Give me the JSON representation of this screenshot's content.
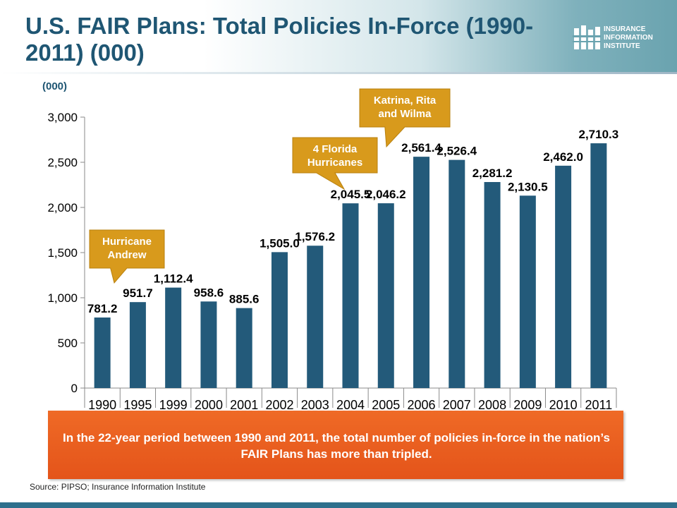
{
  "header": {
    "title": "U.S. FAIR Plans: Total Policies In-Force (1990-2011) (000)"
  },
  "logo": {
    "lines": [
      "INSURANCE",
      "INFORMATION",
      "INSTITUTE"
    ]
  },
  "chart_data": {
    "type": "bar",
    "unit_label": "(000)",
    "categories": [
      "1990",
      "1995",
      "1999",
      "2000",
      "2001",
      "2002",
      "2003",
      "2004",
      "2005",
      "2006",
      "2007",
      "2008",
      "2009",
      "2010",
      "2011"
    ],
    "values": [
      781.2,
      951.7,
      1112.4,
      958.6,
      885.6,
      1505.0,
      1576.2,
      2045.5,
      2046.2,
      2561.4,
      2526.4,
      2281.2,
      2130.5,
      2462.0,
      2710.3
    ],
    "value_labels": [
      "781.2",
      "951.7",
      "1,112.4",
      "958.6",
      "885.6",
      "1,505.0",
      "1,576.2",
      "2,045.5",
      "2,046.2",
      "2,561.4",
      "2,526.4",
      "2,281.2",
      "2,130.5",
      "2,462.0",
      "2,710.3"
    ],
    "ylim": [
      0,
      3000
    ],
    "yticks": [
      0,
      500,
      1000,
      1500,
      2000,
      2500,
      3000
    ],
    "ytick_labels": [
      "0",
      "500",
      "1,000",
      "1,500",
      "2,000",
      "2,500",
      "3,000"
    ],
    "grid": false,
    "bar_color": "#235a7a",
    "annotations": [
      {
        "text": [
          "Hurricane",
          "Andrew"
        ],
        "points_to": "1990"
      },
      {
        "text": [
          "4 Florida",
          "Hurricanes"
        ],
        "points_to": "2004"
      },
      {
        "text": [
          "Katrina, Rita",
          "and Wilma"
        ],
        "points_to": "2005"
      }
    ]
  },
  "takeaway": {
    "text": "In the 22-year period between 1990 and 2011, the total number of policies in-force in the nation’s FAIR Plans has more than tripled."
  },
  "source": "Source: PIPSO; Insurance Information Institute",
  "colors": {
    "title": "#1f5673",
    "bar": "#235a7a",
    "callout": "#d89a1c",
    "takeaway": "#e85c1f"
  }
}
